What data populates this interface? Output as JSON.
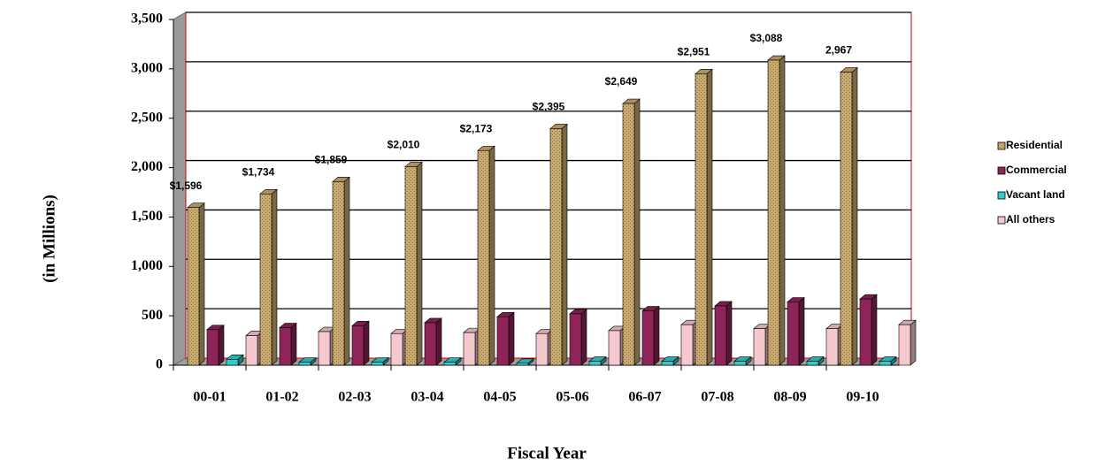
{
  "chart_data": {
    "type": "bar3d",
    "x_label": "Fiscal Year",
    "y_label": "(in Millions)",
    "categories": [
      "00-01",
      "01-02",
      "02-03",
      "03-04",
      "04-05",
      "05-06",
      "06-07",
      "07-08",
      "08-09",
      "09-10"
    ],
    "series": [
      {
        "name": "Residential",
        "color": "#c9ab72",
        "values": [
          1596,
          1734,
          1859,
          2010,
          2173,
          2395,
          2649,
          2951,
          3088,
          2967
        ],
        "value_labels": [
          "$1,596",
          "$1,734",
          "$1,859",
          "$2,010",
          "$2,173",
          "$2,395",
          "$2,649",
          "$2,951",
          "$3,088",
          "2,967"
        ]
      },
      {
        "name": "Commercial",
        "color": "#8e2458",
        "values": [
          360,
          380,
          400,
          430,
          490,
          520,
          550,
          600,
          640,
          670
        ]
      },
      {
        "name": "Vacant land",
        "color": "#33cccc",
        "values": [
          60,
          30,
          30,
          30,
          20,
          40,
          40,
          40,
          40,
          40
        ]
      },
      {
        "name": "All others",
        "color": "#f5c8ce",
        "values": [
          300,
          340,
          320,
          330,
          320,
          350,
          410,
          370,
          370,
          410
        ]
      }
    ],
    "ylim": [
      0,
      3500
    ],
    "yticks": [
      0,
      500,
      {
        "value": 1000,
        "label": "1,000"
      },
      {
        "value": 1500,
        "label": "1,500"
      },
      {
        "value": 2000,
        "label": "2,000"
      },
      {
        "value": 2500,
        "label": "2,500"
      },
      {
        "value": 3000,
        "label": "3,000"
      },
      {
        "value": 3500,
        "label": "3,500"
      }
    ],
    "grid": true,
    "legend": "right"
  }
}
